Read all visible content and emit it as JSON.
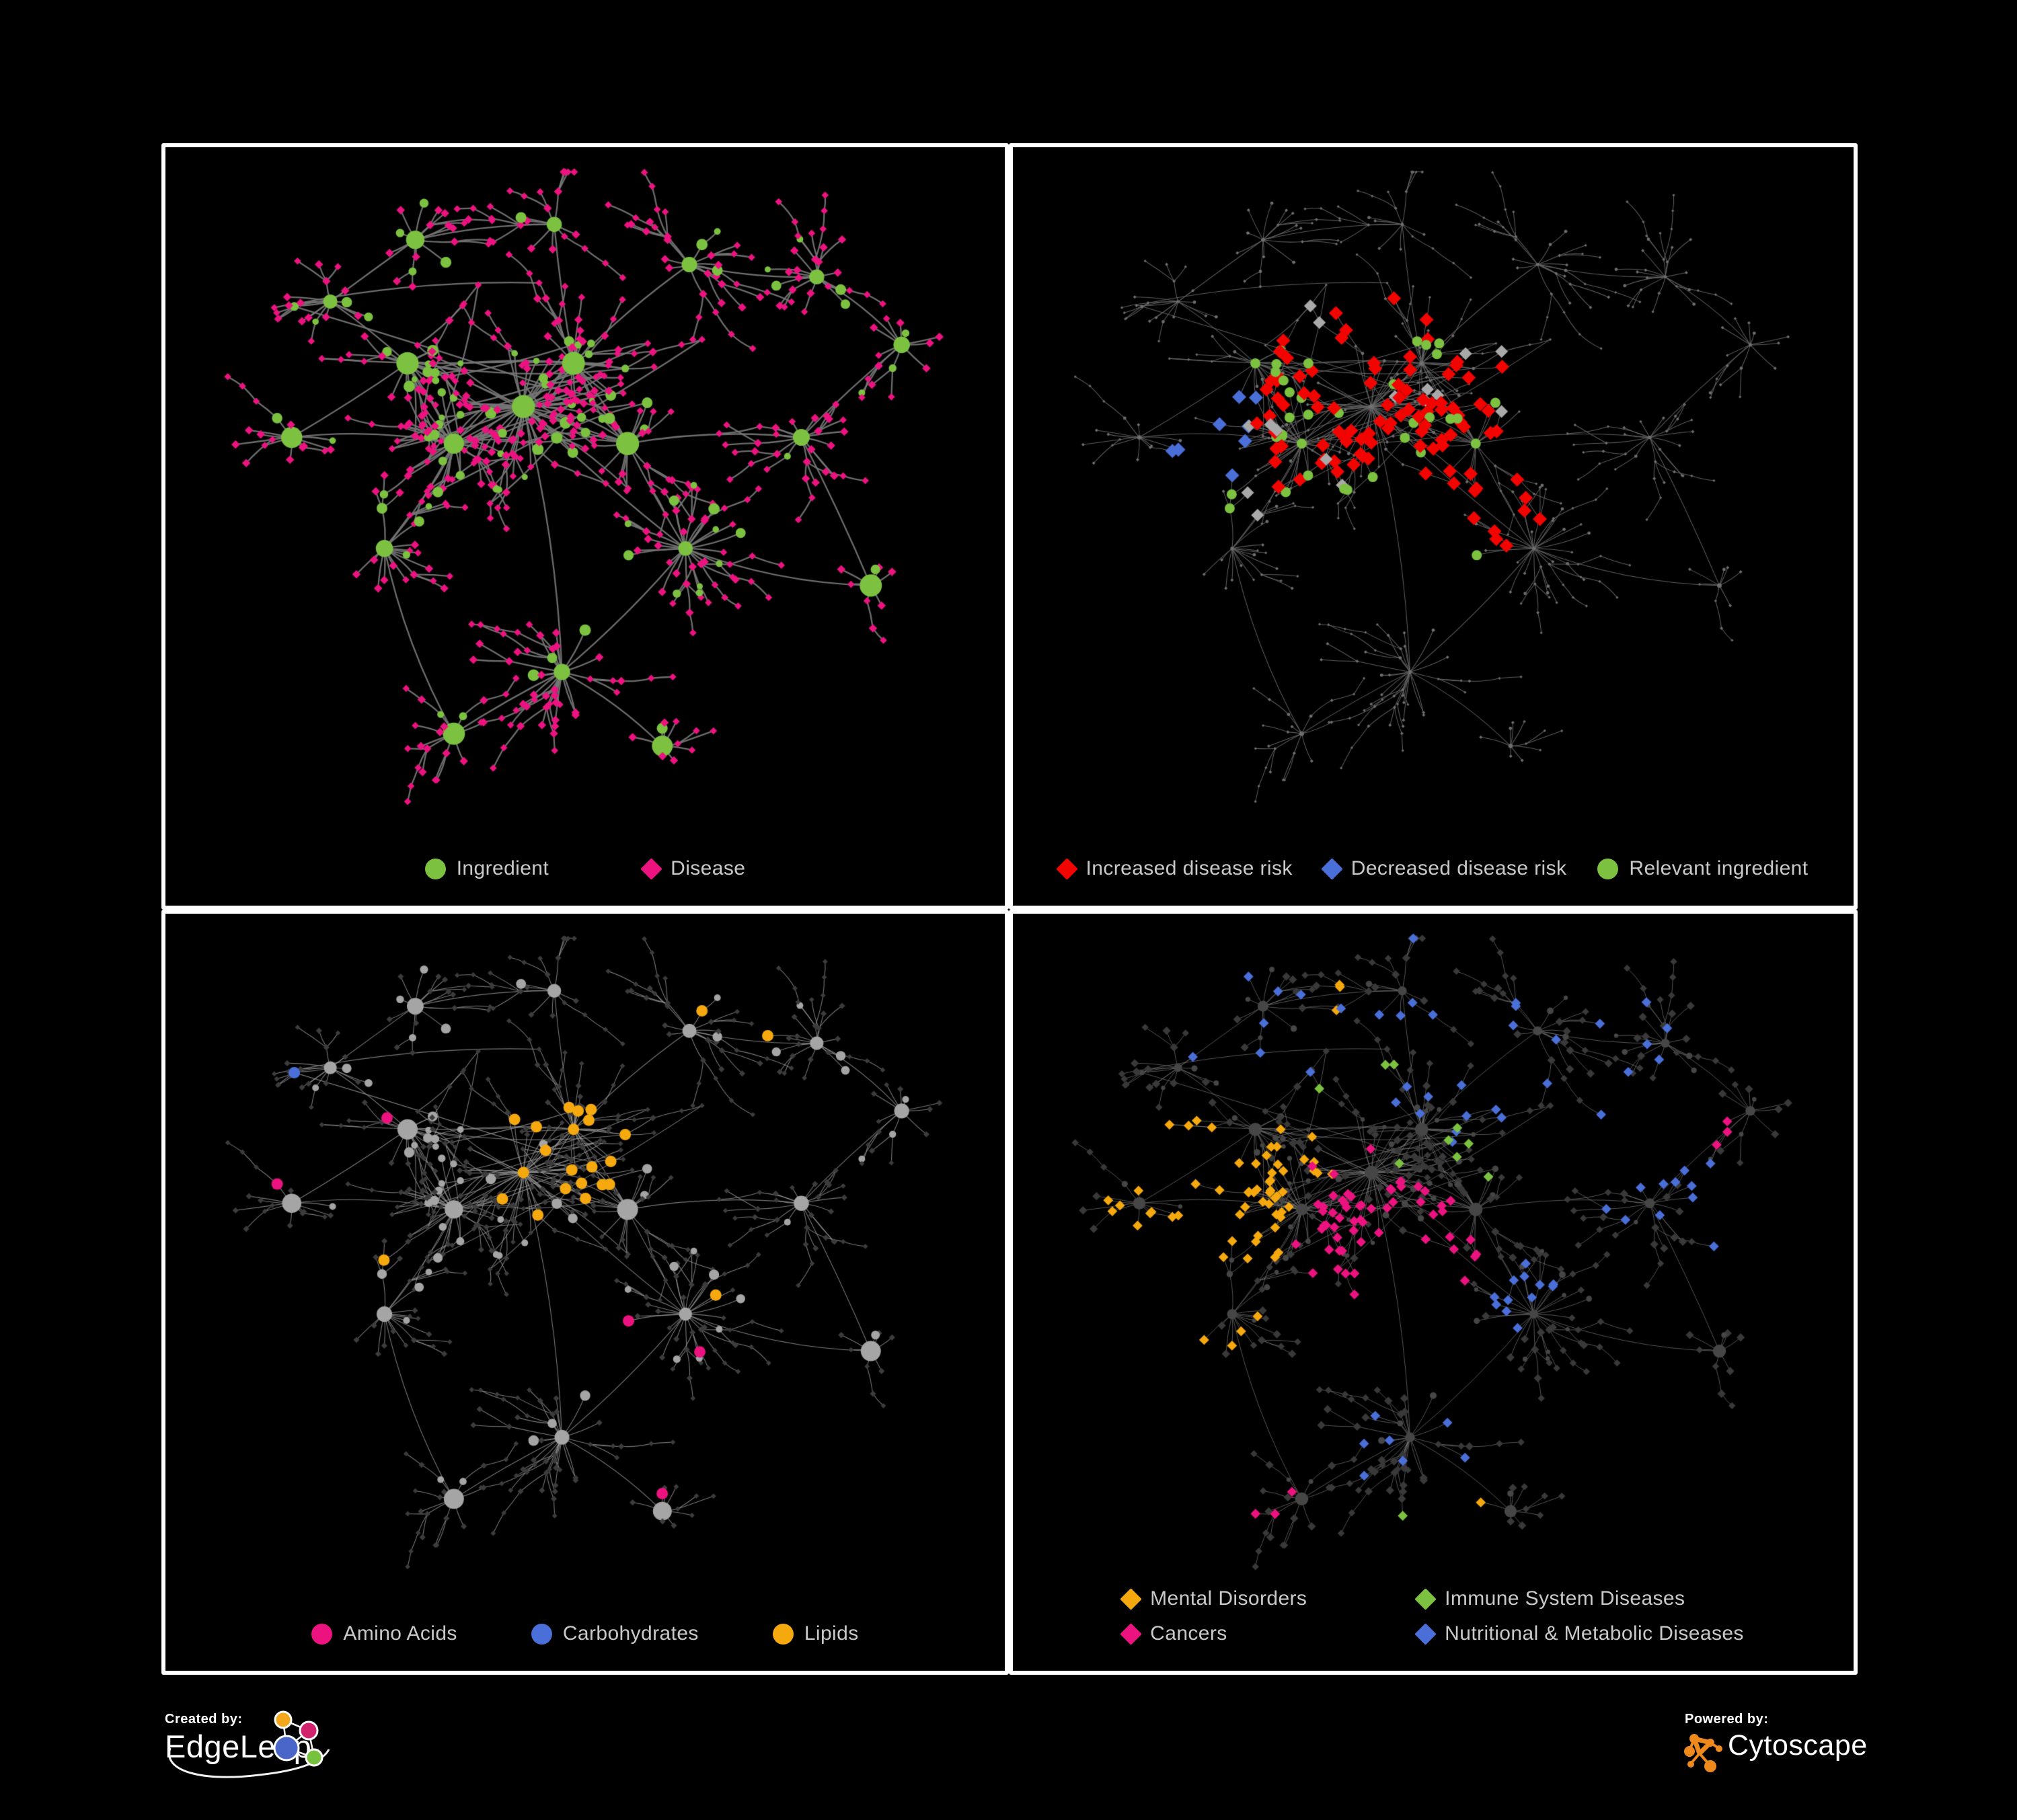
{
  "page": {
    "bg": "#000000",
    "panel_bg": "#000000",
    "panel_border": "#ffffff",
    "legend_text_color": "#c9c9c9"
  },
  "colors": {
    "green": "#7cc140",
    "pink": "#ec1380",
    "red": "#f20400",
    "blue": "#4a6fd8",
    "amber": "#f6a90e",
    "gray_highlight": "#a9a9a9",
    "edge_gray": "#767676",
    "dim_node": "#3c3c3c",
    "light_node": "#a5a5a5"
  },
  "network": {
    "seed": 20240,
    "ing_prob": 0.24,
    "branch_prob": 0.38,
    "extra_edges": 24,
    "clusters": [
      [
        0.42,
        0.37,
        46,
        0.085
      ],
      [
        0.33,
        0.43,
        30,
        0.075
      ],
      [
        0.485,
        0.3,
        26,
        0.062
      ],
      [
        0.27,
        0.3,
        16,
        0.055
      ],
      [
        0.555,
        0.43,
        20,
        0.065
      ],
      [
        0.17,
        0.2,
        13,
        0.055
      ],
      [
        0.28,
        0.1,
        12,
        0.05
      ],
      [
        0.46,
        0.075,
        9,
        0.045
      ],
      [
        0.635,
        0.14,
        12,
        0.05
      ],
      [
        0.8,
        0.16,
        14,
        0.055
      ],
      [
        0.91,
        0.27,
        10,
        0.045
      ],
      [
        0.78,
        0.42,
        13,
        0.055
      ],
      [
        0.63,
        0.6,
        24,
        0.07
      ],
      [
        0.47,
        0.8,
        22,
        0.065
      ],
      [
        0.24,
        0.6,
        15,
        0.06
      ],
      [
        0.12,
        0.42,
        11,
        0.05
      ],
      [
        0.33,
        0.9,
        9,
        0.045
      ],
      [
        0.87,
        0.66,
        7,
        0.045
      ],
      [
        0.6,
        0.92,
        8,
        0.04
      ]
    ],
    "links": [
      [
        0,
        1
      ],
      [
        0,
        2
      ],
      [
        0,
        4
      ],
      [
        1,
        3
      ],
      [
        1,
        15
      ],
      [
        1,
        14
      ],
      [
        2,
        7
      ],
      [
        2,
        8
      ],
      [
        3,
        5
      ],
      [
        5,
        6
      ],
      [
        6,
        7
      ],
      [
        8,
        9
      ],
      [
        9,
        10
      ],
      [
        4,
        11
      ],
      [
        11,
        10
      ],
      [
        4,
        12
      ],
      [
        12,
        13
      ],
      [
        12,
        17
      ],
      [
        13,
        16
      ],
      [
        13,
        18
      ],
      [
        14,
        16
      ],
      [
        0,
        12
      ],
      [
        2,
        4
      ],
      [
        3,
        15
      ],
      [
        0,
        13
      ],
      [
        11,
        17
      ]
    ]
  },
  "panels": [
    {
      "id": "ingredient-disease",
      "seed": 11,
      "edge": {
        "color": "#767676",
        "width": 2.3,
        "alpha": 0.92
      },
      "style": {
        "mode": "types",
        "ing": {
          "color": "#7cc140",
          "mul": 1.05,
          "min": 4.5
        },
        "dis": {
          "color": "#ec1380",
          "size": 6.3
        }
      },
      "highlights": [],
      "legend": {
        "gapClass": "g140",
        "rows": [
          [
            {
              "shape": "circle",
              "color": "#7cc140",
              "label": "Ingredient"
            },
            {
              "shape": "diamond",
              "color": "#ec1380",
              "label": "Disease"
            }
          ]
        ]
      }
    },
    {
      "id": "disease-risk",
      "seed": 22,
      "edge": {
        "color": "#666666",
        "width": 1.05,
        "alpha": 0.9
      },
      "style": {
        "mode": "base",
        "ing": {
          "color": "#6e6e6e",
          "mul": 0.22,
          "min": 2.4
        },
        "dis": {
          "color": "#6e6e6e",
          "size": 2.5
        }
      },
      "highlights": [
        {
          "target": "d",
          "shape": "diamond",
          "color": "#f20400",
          "size": 10.5,
          "areas": [
            [
              0.43,
              0.36,
              0.17,
              0.32
            ],
            [
              0.3,
              0.3,
              0.06,
              0.5
            ],
            [
              0.55,
              0.44,
              0.08,
              0.4
            ],
            [
              0.68,
              0.33,
              0.045,
              0.8
            ],
            [
              0.6,
              0.56,
              0.05,
              0.5
            ],
            [
              0.76,
              0.8,
              0.028,
              1
            ],
            [
              0.81,
              0.86,
              0.028,
              1
            ],
            [
              0.33,
              0.47,
              0.05,
              0.45
            ]
          ]
        },
        {
          "target": "d",
          "shape": "diamond",
          "color": "#4a6fd8",
          "size": 10.5,
          "areas": [
            [
              0.215,
              0.44,
              0.06,
              0.8
            ],
            [
              0.89,
              0.165,
              0.028,
              1
            ],
            [
              0.245,
              0.355,
              0.03,
              0.7
            ]
          ]
        },
        {
          "target": "d",
          "shape": "diamond",
          "color": "#a9a9a9",
          "size": 9.5,
          "areas": [
            [
              0.42,
              0.4,
              0.22,
              0.1
            ],
            [
              0.165,
              0.33,
              0.03,
              0.8
            ],
            [
              0.52,
              0.52,
              0.04,
              0.5
            ]
          ]
        },
        {
          "target": "i",
          "shape": "circle",
          "color": "#7cc140",
          "size": 7.5,
          "areas": [
            [
              0.42,
              0.4,
              0.2,
              0.5
            ],
            [
              0.25,
              0.44,
              0.1,
              0.5
            ],
            [
              0.6,
              0.5,
              0.12,
              0.28
            ],
            [
              0.14,
              0.3,
              0.05,
              0.6
            ],
            [
              0.9,
              0.6,
              0.03,
              0.8
            ],
            [
              0.36,
              0.22,
              0.07,
              0.4
            ]
          ]
        }
      ],
      "legend": {
        "gapClass": "g46",
        "rows": [
          [
            {
              "shape": "diamond",
              "color": "#f20400",
              "label": "Increased disease risk"
            },
            {
              "shape": "diamond",
              "color": "#4a6fd8",
              "label": "Decreased disease risk"
            },
            {
              "shape": "circle",
              "color": "#7cc140",
              "label": "Relevant ingredient"
            }
          ]
        ]
      }
    },
    {
      "id": "ingredient-classes",
      "seed": 33,
      "edge": {
        "color": "#989898",
        "width": 1.1,
        "alpha": 0.78
      },
      "style": {
        "mode": "base",
        "ing": {
          "color": "#a5a5a5",
          "mul": 0.95,
          "min": 5
        },
        "dis": {
          "color": "#3c3c3c",
          "size": 4.6
        }
      },
      "highlights": [
        {
          "target": "i",
          "shape": "circle",
          "color": "#f6a90e",
          "size": 8.5,
          "areas": [
            [
              0.49,
              0.32,
              0.1,
              0.9
            ],
            [
              0.41,
              0.47,
              0.07,
              0.6
            ],
            [
              0.63,
              0.58,
              0.05,
              0.85
            ],
            [
              0.3,
              0.2,
              0.05,
              0.35
            ],
            [
              0.6,
              0.3,
              0.22,
              0.1
            ],
            [
              0.28,
              0.66,
              0.28,
              0.12
            ],
            [
              0.9,
              0.55,
              0.06,
              0.5
            ],
            [
              0.52,
              0.07,
              0.05,
              0.5
            ]
          ]
        },
        {
          "target": "i",
          "shape": "circle",
          "color": "#ec1380",
          "size": 8.5,
          "areas": [
            [
              0.5,
              0.72,
              0.22,
              0.2
            ],
            [
              0.13,
              0.38,
              0.035,
              0.9
            ],
            [
              0.24,
              0.3,
              0.04,
              0.45
            ],
            [
              0.62,
              0.035,
              0.03,
              1
            ],
            [
              0.95,
              0.32,
              0.03,
              0.8
            ],
            [
              0.47,
              0.55,
              0.12,
              0.12
            ],
            [
              0.1,
              0.6,
              0.04,
              0.6
            ]
          ]
        },
        {
          "target": "i",
          "shape": "circle",
          "color": "#4a6fd8",
          "size": 8.5,
          "areas": [
            [
              0.52,
              0.3,
              0.09,
              0.3
            ],
            [
              0.14,
              0.2,
              0.028,
              0.9
            ],
            [
              0.6,
              0.47,
              0.05,
              0.35
            ],
            [
              0.97,
              0.63,
              0.022,
              1
            ],
            [
              0.44,
              0.37,
              0.05,
              0.25
            ]
          ]
        }
      ],
      "legend": {
        "gapClass": "g110",
        "rows": [
          [
            {
              "shape": "circle",
              "color": "#ec1380",
              "label": "Amino Acids"
            },
            {
              "shape": "circle",
              "color": "#4a6fd8",
              "label": "Carbohydrates"
            },
            {
              "shape": "circle",
              "color": "#f6a90e",
              "label": "Lipids"
            }
          ]
        ]
      }
    },
    {
      "id": "disease-classes",
      "seed": 44,
      "edge": {
        "color": "#828282",
        "width": 0.9,
        "alpha": 0.72
      },
      "style": {
        "mode": "base",
        "ing": {
          "color": "#464646",
          "mul": 0.62,
          "min": 3.2
        },
        "dis": {
          "color": "#393939",
          "size": 6.2
        }
      },
      "highlights": [
        {
          "target": "d",
          "shape": "diamond",
          "color": "#f6a90e",
          "size": 7.4,
          "areas": [
            [
              0.2,
              0.42,
              0.135,
              0.92
            ],
            [
              0.33,
              0.35,
              0.06,
              0.4
            ],
            [
              0.38,
              0.1,
              0.045,
              0.7
            ],
            [
              0.23,
              0.62,
              0.05,
              0.45
            ],
            [
              0.55,
              0.9,
              0.03,
              0.8
            ],
            [
              0.75,
              0.72,
              0.022,
              0.9
            ],
            [
              0.1,
              0.3,
              0.05,
              0.5
            ]
          ]
        },
        {
          "target": "d",
          "shape": "diamond",
          "color": "#ec1380",
          "size": 7.4,
          "areas": [
            [
              0.44,
              0.5,
              0.12,
              0.8
            ],
            [
              0.4,
              0.38,
              0.06,
              0.45
            ],
            [
              0.87,
              0.29,
              0.04,
              1
            ],
            [
              0.6,
              0.7,
              0.14,
              0.12
            ],
            [
              0.3,
              0.9,
              0.05,
              0.45
            ],
            [
              0.13,
              0.7,
              0.035,
              0.7
            ],
            [
              0.97,
              0.45,
              0.025,
              0.9
            ]
          ]
        },
        {
          "target": "d",
          "shape": "diamond",
          "color": "#4a6fd8",
          "size": 7.4,
          "areas": [
            [
              0.62,
              0.57,
              0.055,
              0.95
            ],
            [
              0.78,
              0.36,
              0.1,
              0.6
            ],
            [
              0.6,
              0.12,
              0.22,
              0.2
            ],
            [
              0.25,
              0.14,
              0.12,
              0.28
            ],
            [
              0.5,
              0.83,
              0.1,
              0.32
            ],
            [
              0.9,
              0.5,
              0.06,
              0.55
            ],
            [
              0.68,
              0.87,
              0.045,
              0.5
            ],
            [
              0.16,
              0.85,
              0.035,
              0.6
            ],
            [
              0.92,
              0.14,
              0.05,
              0.5
            ]
          ]
        },
        {
          "target": "d",
          "shape": "diamond",
          "color": "#7cc140",
          "size": 7.4,
          "areas": [
            [
              0.44,
              0.42,
              0.28,
              0.05
            ],
            [
              0.48,
              0.93,
              0.025,
              1
            ],
            [
              0.6,
              0.3,
              0.1,
              0.08
            ]
          ]
        }
      ],
      "legend": {
        "gapClass": "cols",
        "rows": [
          [
            {
              "shape": "diamond",
              "color": "#f6a90e",
              "label": "Mental Disorders"
            },
            {
              "shape": "diamond",
              "color": "#7cc140",
              "label": "Immune System Diseases"
            }
          ],
          [
            {
              "shape": "diamond",
              "color": "#ec1380",
              "label": "Cancers"
            },
            {
              "shape": "diamond",
              "color": "#4a6fd8",
              "label": "Nutritional & Metabolic Diseases"
            }
          ]
        ]
      }
    }
  ],
  "footer": {
    "created_by": "Created by:",
    "edgeleap": "EdgeLeap",
    "powered_by": "Powered by:",
    "cytoscape": "Cytoscape",
    "edgeleap_icon_colors": {
      "orange": "#f2a71d",
      "pink": "#d2226e",
      "blue": "#4a66c8",
      "green": "#76c13d"
    },
    "cytoscape_icon_color": "#ee8a1d"
  }
}
